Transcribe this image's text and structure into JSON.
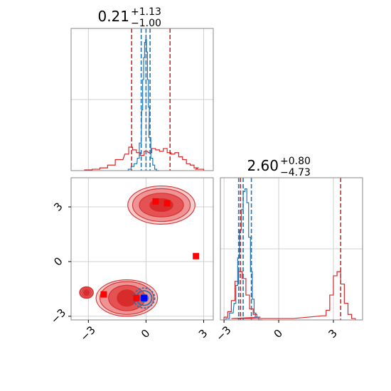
{
  "chart_data": [
    {
      "panel": "top-left",
      "type": "histogram",
      "title": {
        "main": "0.21",
        "plus": "+1.13",
        "minus": "−1.00"
      },
      "xlim": [
        -3.9,
        3.5
      ],
      "grid": true,
      "colors": {
        "blue": "#1f77b4",
        "red": "#d62728"
      },
      "blue_quantiles": [
        -0.25,
        0.0,
        0.21
      ],
      "red_quantiles": [
        -0.75,
        1.25
      ],
      "blue_hist": {
        "x": [
          -0.85,
          -0.7,
          -0.55,
          -0.4,
          -0.3,
          -0.2,
          -0.15,
          -0.1,
          -0.05,
          0.0,
          0.05,
          0.1,
          0.15,
          0.2,
          0.3,
          0.4,
          0.5,
          0.6
        ],
        "values": [
          0.01,
          0.03,
          0.05,
          0.09,
          0.2,
          0.44,
          0.66,
          0.82,
          0.93,
          0.95,
          0.86,
          0.66,
          0.46,
          0.24,
          0.09,
          0.04,
          0.01,
          0.0
        ]
      },
      "red_hist": {
        "x": [
          -3.0,
          -2.6,
          -2.2,
          -1.8,
          -1.4,
          -1.0,
          -0.8,
          -0.6,
          -0.4,
          -0.2,
          0.0,
          0.2,
          0.4,
          0.6,
          0.8,
          1.0,
          1.2,
          1.4,
          1.6,
          1.8,
          2.0,
          2.2,
          2.4,
          2.6,
          2.8
        ],
        "values": [
          0.005,
          0.01,
          0.02,
          0.04,
          0.08,
          0.12,
          0.17,
          0.15,
          0.13,
          0.11,
          0.14,
          0.13,
          0.16,
          0.15,
          0.14,
          0.16,
          0.13,
          0.12,
          0.13,
          0.1,
          0.08,
          0.05,
          0.04,
          0.02,
          0.01
        ]
      }
    },
    {
      "panel": "bottom-left",
      "type": "contour",
      "xlim": [
        -3.9,
        3.5
      ],
      "ylim": [
        -3.2,
        4.6
      ],
      "xticks": [
        "−3",
        "0",
        "3"
      ],
      "yticks": [
        "−3",
        "0",
        "3"
      ],
      "grid": true,
      "red_clusters": [
        {
          "center": [
            0.8,
            3.1
          ],
          "rx": [
            0.6,
            1.15,
            1.5,
            1.75
          ],
          "ry": [
            0.35,
            0.65,
            0.9,
            1.05
          ]
        },
        {
          "center": [
            -1.0,
            -2.0
          ],
          "rx": [
            0.5,
            0.95,
            1.4,
            1.6
          ],
          "ry": [
            0.45,
            0.7,
            0.9,
            1.0
          ]
        },
        {
          "center": [
            -3.1,
            -1.7
          ],
          "rx": [
            0.15,
            0.25,
            0.32,
            0.36
          ],
          "ry": [
            0.15,
            0.22,
            0.28,
            0.32
          ]
        }
      ],
      "red_points": [
        [
          0.5,
          3.3
        ],
        [
          1.1,
          3.2
        ],
        [
          2.6,
          0.3
        ],
        [
          -2.2,
          -1.8
        ],
        [
          -0.5,
          -2.0
        ]
      ],
      "blue_cluster": {
        "center": [
          -0.1,
          -2.0
        ],
        "rx": [
          0.2,
          0.4,
          0.55
        ],
        "ry": [
          0.2,
          0.4,
          0.55
        ]
      },
      "blue_point": [
        -0.1,
        -2.0
      ]
    },
    {
      "panel": "bottom-right",
      "type": "histogram",
      "title": {
        "main": "2.60",
        "plus": "+0.80",
        "minus": "−4.73"
      },
      "xlim": [
        -3.2,
        4.6
      ],
      "xticks": [
        "−3",
        "0",
        "3"
      ],
      "grid": true,
      "blue_quantiles": [
        -2.2,
        -1.95,
        -1.5
      ],
      "red_quantiles": [
        -2.1,
        3.4
      ],
      "blue_hist": {
        "x": [
          -2.8,
          -2.6,
          -2.4,
          -2.3,
          -2.2,
          -2.1,
          -2.0,
          -1.9,
          -1.8,
          -1.7,
          -1.6,
          -1.5,
          -1.4,
          -1.3,
          -1.2,
          -1.0
        ],
        "values": [
          0.01,
          0.05,
          0.12,
          0.25,
          0.45,
          0.65,
          0.8,
          0.93,
          0.95,
          0.85,
          0.6,
          0.35,
          0.15,
          0.05,
          0.02,
          0.0
        ]
      },
      "red_hist": {
        "x": [
          -2.9,
          -2.7,
          -2.5,
          -2.3,
          -2.1,
          -1.9,
          -1.7,
          -1.5,
          -1.3,
          -1.1,
          -0.9,
          2.5,
          2.7,
          2.9,
          3.1,
          3.3,
          3.5,
          3.7,
          3.9,
          4.1
        ],
        "values": [
          0.02,
          0.06,
          0.14,
          0.28,
          0.35,
          0.3,
          0.18,
          0.08,
          0.04,
          0.02,
          0.01,
          0.03,
          0.07,
          0.18,
          0.32,
          0.35,
          0.26,
          0.12,
          0.04,
          0.01
        ]
      }
    }
  ]
}
